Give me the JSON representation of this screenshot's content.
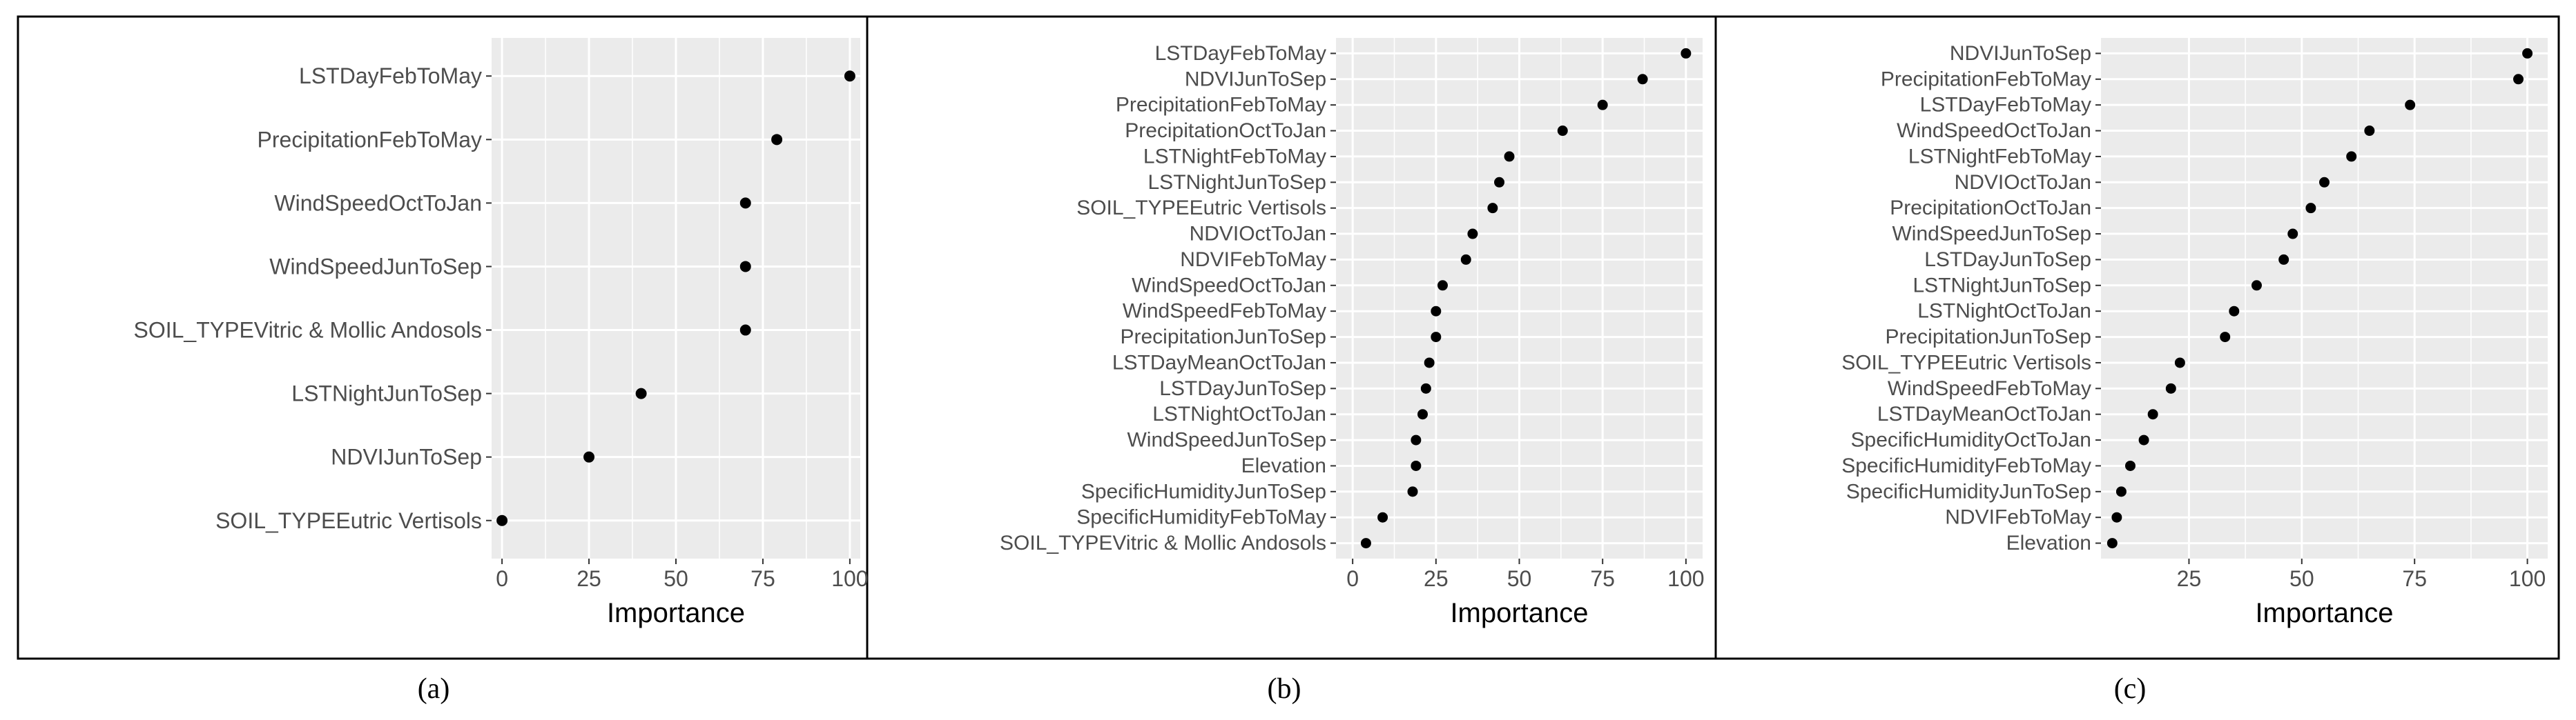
{
  "figure": {
    "captions": [
      "(a)",
      "(b)",
      "(c)"
    ]
  },
  "colors": {
    "panel_bg": "#ebebeb",
    "grid": "#ffffff",
    "point": "#000000",
    "label": "#4d4d4d",
    "axis_title": "#000000",
    "border": "#000000"
  },
  "chart_data": [
    {
      "type": "scatter",
      "id": "a",
      "caption": "(a)",
      "xlabel": "Importance",
      "ylabel": "",
      "xlim": [
        -3,
        103
      ],
      "xticks": [
        0,
        25,
        50,
        75,
        100
      ],
      "grid": true,
      "categories": [
        "LSTDayFebToMay",
        "PrecipitationFebToMay",
        "WindSpeedOctToJan",
        "WindSpeedJunToSep",
        "SOIL_TYPEVitric & Mollic Andosols",
        "LSTNightJunToSep",
        "NDVIJunToSep",
        "SOIL_TYPEEutric Vertisols"
      ],
      "values": [
        100,
        79,
        70,
        70,
        70,
        40,
        25,
        0
      ]
    },
    {
      "type": "scatter",
      "id": "b",
      "caption": "(b)",
      "xlabel": "Importance",
      "ylabel": "",
      "xlim": [
        -5,
        105
      ],
      "xticks": [
        0,
        25,
        50,
        75,
        100
      ],
      "grid": true,
      "categories": [
        "LSTDayFebToMay",
        "NDVIJunToSep",
        "PrecipitationFebToMay",
        "PrecipitationOctToJan",
        "LSTNightFebToMay",
        "LSTNightJunToSep",
        "SOIL_TYPEEutric Vertisols",
        "NDVIOctToJan",
        "NDVIFebToMay",
        "WindSpeedOctToJan",
        "WindSpeedFebToMay",
        "PrecipitationJunToSep",
        "LSTDayMeanOctToJan",
        "LSTDayJunToSep",
        "LSTNightOctToJan",
        "WindSpeedJunToSep",
        "Elevation",
        "SpecificHumidityJunToSep",
        "SpecificHumidityFebToMay",
        "SOIL_TYPEVitric & Mollic Andosols"
      ],
      "values": [
        100,
        87,
        75,
        63,
        47,
        44,
        42,
        36,
        34,
        27,
        25,
        25,
        23,
        22,
        21,
        19,
        19,
        18,
        9,
        4
      ]
    },
    {
      "type": "scatter",
      "id": "c",
      "caption": "(c)",
      "xlabel": "Importance",
      "ylabel": "",
      "xlim": [
        5.5,
        104.5
      ],
      "xticks": [
        25,
        50,
        75,
        100
      ],
      "grid": true,
      "categories": [
        "NDVIJunToSep",
        "PrecipitationFebToMay",
        "LSTDayFebToMay",
        "WindSpeedOctToJan",
        "LSTNightFebToMay",
        "NDVIOctToJan",
        "PrecipitationOctToJan",
        "WindSpeedJunToSep",
        "LSTDayJunToSep",
        "LSTNightJunToSep",
        "LSTNightOctToJan",
        "PrecipitationJunToSep",
        "SOIL_TYPEEutric Vertisols",
        "WindSpeedFebToMay",
        "LSTDayMeanOctToJan",
        "SpecificHumidityOctToJan",
        "SpecificHumidityFebToMay",
        "SpecificHumidityJunToSep",
        "NDVIFebToMay",
        "Elevation"
      ],
      "values": [
        100,
        98,
        74,
        65,
        61,
        55,
        52,
        48,
        46,
        40,
        35,
        33,
        23,
        21,
        17,
        15,
        12,
        10,
        9,
        8
      ]
    }
  ]
}
